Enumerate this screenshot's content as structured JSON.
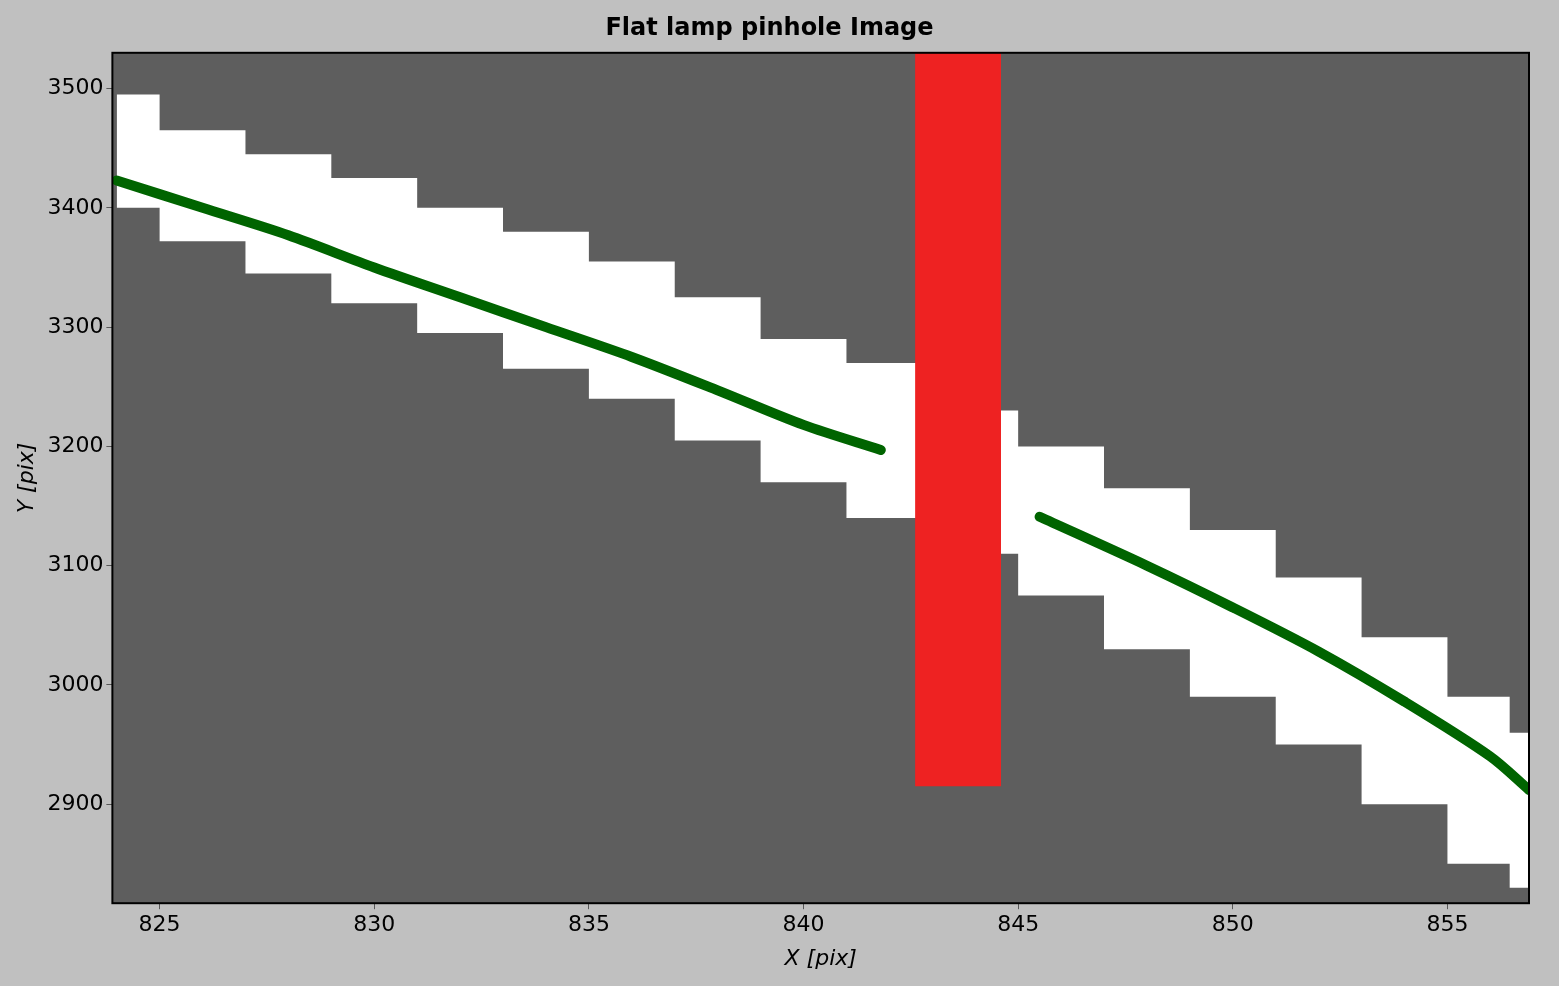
{
  "chart_data": {
    "type": "scatter",
    "title": "Flat lamp pinhole Image",
    "x_label": "X [pix]",
    "y_label": "Y [pix]",
    "xlim": [
      823.9,
      856.9
    ],
    "xticks": [
      825,
      830,
      835,
      840,
      845,
      850,
      855
    ],
    "ylim": [
      2817,
      3530
    ],
    "yticks": [
      2900,
      3000,
      3100,
      3200,
      3300,
      3400,
      3500
    ],
    "grid": true,
    "series": [
      {
        "type": "band",
        "color": "#ffffff",
        "x": [
          824,
          826,
          828,
          830,
          832,
          834,
          836,
          838,
          840,
          842,
          844,
          846,
          848,
          850,
          852,
          854,
          856,
          856.9
        ],
        "upper": [
          3495,
          3465,
          3445,
          3425,
          3400,
          3380,
          3355,
          3325,
          3290,
          3270,
          3230,
          3200,
          3165,
          3130,
          3090,
          3040,
          2990,
          2960
        ],
        "lower": [
          3400,
          3372,
          3345,
          3320,
          3295,
          3265,
          3240,
          3205,
          3170,
          3140,
          3110,
          3075,
          3030,
          2990,
          2950,
          2900,
          2850,
          2830
        ]
      },
      {
        "type": "rect",
        "color": "#ee2222",
        "x": [
          842.6,
          844.6
        ],
        "values": [
          2915,
          3530
        ]
      },
      {
        "type": "line",
        "color": "#006400",
        "x": [
          824,
          826,
          828,
          830,
          832,
          834,
          836,
          838,
          840,
          841.8
        ],
        "values": [
          3423,
          3400,
          3377,
          3350,
          3325,
          3300,
          3275,
          3247,
          3218,
          3197
        ]
      },
      {
        "type": "line",
        "color": "#006400",
        "x": [
          845.5,
          848,
          850,
          852,
          854,
          856,
          856.9
        ],
        "values": [
          3141,
          3100,
          3065,
          3028,
          2986,
          2940,
          2912
        ]
      }
    ]
  }
}
